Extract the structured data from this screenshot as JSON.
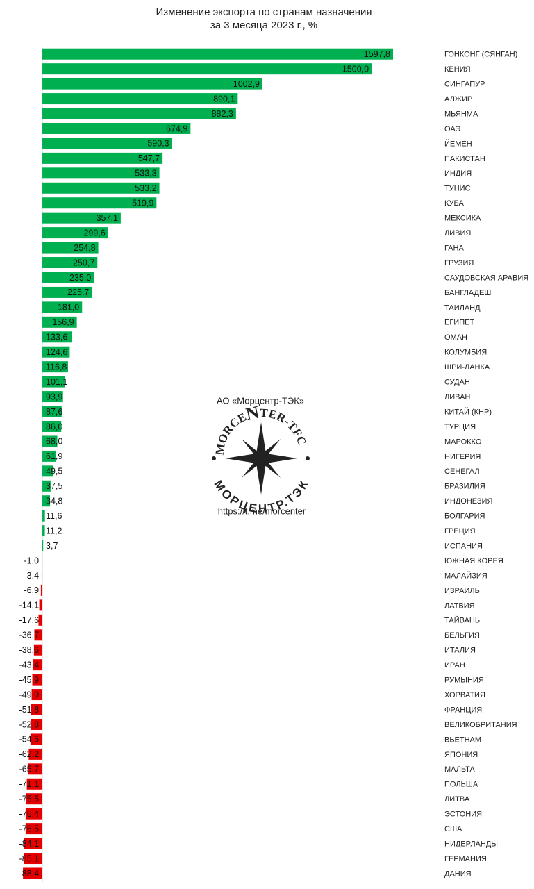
{
  "chart_data": {
    "type": "barh",
    "title": "Изменение экспорта по странам назначения",
    "subtitle": "за 3 месяца 2023 г., %",
    "color": "#00b050",
    "negative_color": "#e60000",
    "xlim": [
      -90,
      1600
    ],
    "categories": [
      "ГОНКОНГ (СЯНГАН)",
      "КЕНИЯ",
      "СИНГАПУР",
      "АЛЖИР",
      "МЬЯНМА",
      "ОАЭ",
      "ЙЕМЕН",
      "ПАКИСТАН",
      "ИНДИЯ",
      "ТУНИС",
      "КУБА",
      "МЕКСИКА",
      "ЛИВИЯ",
      "ГАНА",
      "ГРУЗИЯ",
      "САУДОВСКАЯ АРАВИЯ",
      "БАНГЛАДЕШ",
      "ТАИЛАНД",
      "ЕГИПЕТ",
      "ОМАН",
      "КОЛУМБИЯ",
      "ШРИ-ЛАНКА",
      "СУДАН",
      "ЛИВАН",
      "КИТАЙ (КНР)",
      "ТУРЦИЯ",
      "МАРОККО",
      "НИГЕРИЯ",
      "СЕНЕГАЛ",
      "БРАЗИЛИЯ",
      "ИНДОНЕЗИЯ",
      "БОЛГАРИЯ",
      "ГРЕЦИЯ",
      "ИСПАНИЯ",
      "ЮЖНАЯ КОРЕЯ",
      "МАЛАЙЗИЯ",
      "ИЗРАИЛЬ",
      "ЛАТВИЯ",
      "ТАЙВАНЬ",
      "БЕЛЬГИЯ",
      "ИТАЛИЯ",
      "ИРАН",
      "РУМЫНИЯ",
      "ХОРВАТИЯ",
      "ФРАНЦИЯ",
      "ВЕЛИКОБРИТАНИЯ",
      "ВЬЕТНАМ",
      "ЯПОНИЯ",
      "МАЛЬТА",
      "ПОЛЬША",
      "ЛИТВА",
      "ЭСТОНИЯ",
      "США",
      "НИДЕРЛАНДЫ",
      "ГЕРМАНИЯ",
      "ДАНИЯ"
    ],
    "values": [
      1597.8,
      1500.0,
      1002.9,
      890.1,
      882.3,
      674.9,
      590.3,
      547.7,
      533.3,
      533.2,
      519.9,
      357.1,
      299.6,
      254.8,
      250.7,
      235.0,
      225.7,
      181.0,
      156.9,
      133.6,
      124.6,
      116.8,
      101.1,
      93.9,
      87.6,
      86.0,
      68.0,
      61.9,
      49.5,
      37.5,
      34.8,
      11.6,
      11.2,
      3.7,
      -1.0,
      -3.4,
      -6.9,
      -14.1,
      -17.6,
      -36.7,
      -38.6,
      -43.4,
      -45.9,
      -49.0,
      -51.8,
      -52.8,
      -54.5,
      -62.2,
      -65.7,
      -71.1,
      -75.5,
      -76.4,
      -76.5,
      -84.1,
      -85.1,
      -88.4
    ],
    "value_labels": [
      "1597,8",
      "1500,0",
      "1002,9",
      "890,1",
      "882,3",
      "674,9",
      "590,3",
      "547,7",
      "533,3",
      "533,2",
      "519,9",
      "357,1",
      "299,6",
      "254,8",
      "250,7",
      "235,0",
      "225,7",
      "181,0",
      "156,9",
      "133,6",
      "124,6",
      "116,8",
      "101,1",
      "93,9",
      "87,6",
      "86,0",
      "68,0",
      "61,9",
      "49,5",
      "37,5",
      "34,8",
      "11,6",
      "11,2",
      "3,7",
      "-1,0",
      "-3,4",
      "-6,9",
      "-14,1",
      "-17,6",
      "-36,7",
      "-38,6",
      "-43,4",
      "-45,9",
      "-49,0",
      "-51,8",
      "-52,8",
      "-54,5",
      "-62,2",
      "-65,7",
      "-71,1",
      "-75,5",
      "-76,4",
      "-76,5",
      "-84,1",
      "-85,1",
      "-88,4"
    ]
  },
  "watermark": {
    "company": "АО «Морцентр-ТЭК»",
    "arc_left": "MORCE",
    "arc_letter": "N",
    "arc_right": "TER-TFC",
    "arc_bottom": "МОРЦЕНТР.ТЭК",
    "url": "https://t.me/morcenter"
  }
}
